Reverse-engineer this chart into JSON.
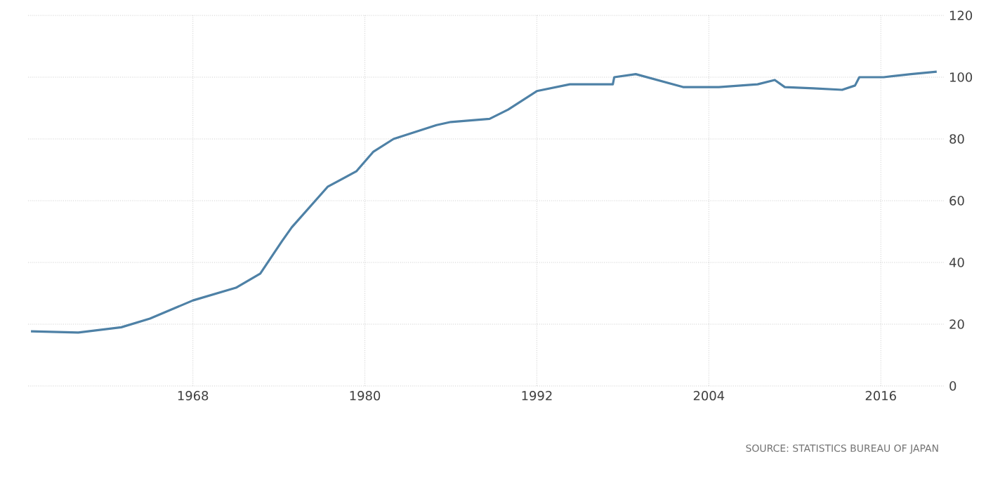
{
  "chart_data": {
    "type": "line",
    "x": [
      1956.7,
      1960,
      1963,
      1965,
      1968,
      1971,
      1972.7,
      1974.2,
      1974.9,
      1977.4,
      1979.4,
      1980.6,
      1982,
      1985,
      1986,
      1988.7,
      1990,
      1992,
      1994.3,
      1997.3,
      1997.4,
      1998.9,
      2002.2,
      2004.7,
      2007.4,
      2008.6,
      2009.3,
      2011.3,
      2013.3,
      2014.2,
      2014.5,
      2016.2,
      2018.1,
      2019.9
    ],
    "series": [
      {
        "color": "#4e81a6",
        "values": [
          17.7,
          17.3,
          19,
          21.8,
          27.7,
          31.8,
          36.4,
          46.8,
          51.4,
          64.5,
          69.5,
          75.9,
          80,
          84.5,
          85.5,
          86.5,
          89.5,
          95.5,
          97.7,
          97.7,
          100,
          101,
          96.8,
          96.8,
          97.7,
          99.1,
          96.8,
          96.4,
          95.9,
          97.3,
          100,
          100,
          101,
          101.8
        ]
      }
    ],
    "xlim": [
      1956.5,
      2020.4
    ],
    "xticks": [
      1968,
      1980,
      1992,
      2004,
      2016
    ],
    "ylim": [
      0,
      120
    ],
    "yticks": [
      0,
      20,
      40,
      60,
      80,
      100,
      120
    ],
    "grid": true,
    "annotations": [
      "SOURCE: STATISTICS BUREAU OF JAPAN"
    ]
  }
}
